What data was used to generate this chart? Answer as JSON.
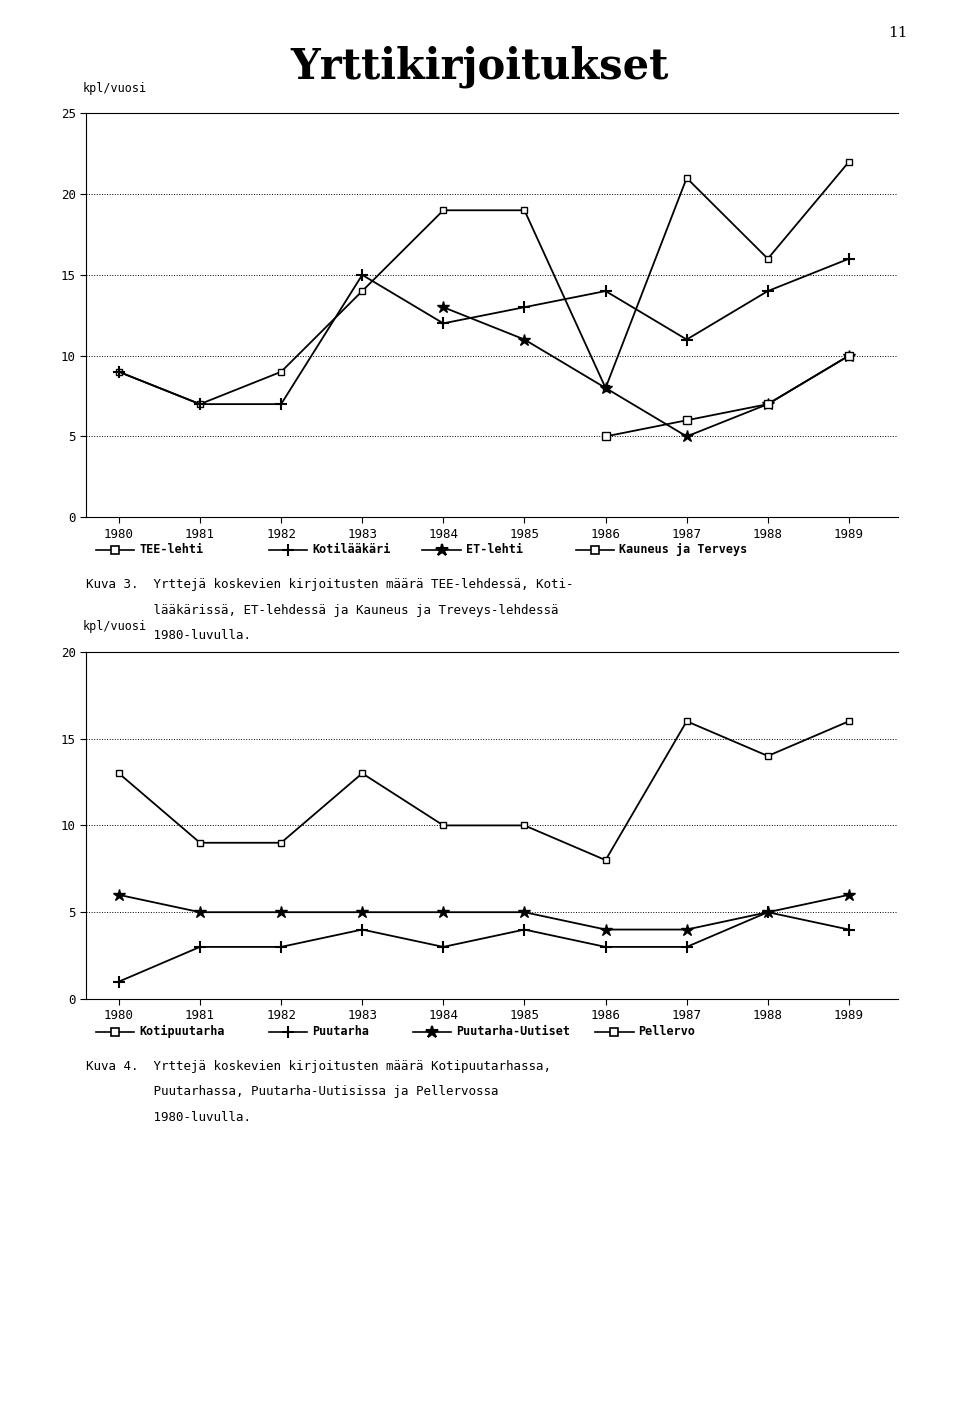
{
  "title": "Yrttikirjoitukset",
  "page_number": "11",
  "years": [
    1980,
    1981,
    1982,
    1983,
    1984,
    1985,
    1986,
    1987,
    1988,
    1989
  ],
  "chart1": {
    "ylabel": "kpl/vuosi",
    "ylim": [
      0,
      25
    ],
    "yticks": [
      0,
      5,
      10,
      15,
      20,
      25
    ],
    "gridlines": [
      5,
      10,
      15,
      20
    ],
    "TEE_lehti": [
      9,
      7,
      9,
      14,
      19,
      19,
      8,
      21,
      16,
      22
    ],
    "Kotilaakaari": [
      9,
      7,
      7,
      15,
      12,
      13,
      14,
      11,
      14,
      16
    ],
    "ET_lehti": [
      null,
      null,
      null,
      null,
      13,
      11,
      8,
      5,
      7,
      10
    ],
    "Kauneus_Terveys": [
      null,
      null,
      null,
      null,
      null,
      null,
      5,
      6,
      7,
      10
    ],
    "legend1": "TEE-lehti",
    "legend2": "Kotilääkäri",
    "legend3": "ET-lehti",
    "legend4": "Kauneus ja Terveys",
    "caption_line1": "Kuva 3.  Yrttejä koskevien kirjoitusten määrä TEE-lehdessä, Koti-",
    "caption_line2": "         lääkärissä, ET-lehdessä ja Kauneus ja Treveys-lehdessä",
    "caption_line3": "         1980-luvulla."
  },
  "chart2": {
    "ylabel": "kpl/vuosi",
    "ylim": [
      0,
      20
    ],
    "yticks": [
      0,
      5,
      10,
      15,
      20
    ],
    "gridlines": [
      5,
      10,
      15
    ],
    "Kotipuutarha": [
      13,
      9,
      9,
      13,
      10,
      10,
      8,
      16,
      14,
      16
    ],
    "Puutarha": [
      1,
      3,
      3,
      4,
      3,
      4,
      3,
      3,
      5,
      4
    ],
    "Puutarha_Uutiset": [
      6,
      5,
      5,
      5,
      5,
      5,
      4,
      4,
      5,
      6
    ],
    "Pellervo": [
      null,
      null,
      null,
      null,
      null,
      null,
      null,
      null,
      null,
      null
    ],
    "legend1": "Kotipuutarha",
    "legend2": "Puutarha",
    "legend3": "Puutarha-Uutiset",
    "legend4": "Pellervo",
    "caption_line1": "Kuva 4.  Yrttejä koskevien kirjoitusten määrä Kotipuutarhassa,",
    "caption_line2": "         Puutarhassa, Puutarha-Uutisissa ja Pellervossa",
    "caption_line3": "         1980-luvulla."
  }
}
